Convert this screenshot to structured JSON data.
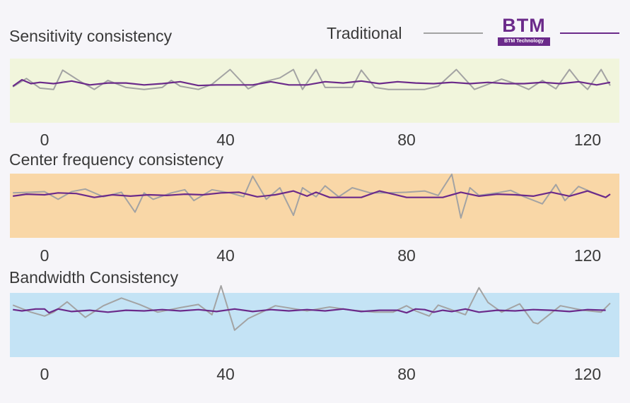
{
  "legend": {
    "traditional_label": "Traditional",
    "traditional_color": "#a3a3a3",
    "btm_color": "#6b2a8a",
    "btm_logo_text": "BTM",
    "btm_logo_subtext": "BTM Technology"
  },
  "chart_data": [
    {
      "type": "line",
      "title": "Sensitivity consistency",
      "band_color": "#f1f5dc",
      "xlim": [
        -8,
        128
      ],
      "ylim": [
        0,
        1
      ],
      "xticks": [
        0,
        40,
        80,
        120
      ],
      "series": [
        {
          "name": "Traditional",
          "x": [
            -7,
            -4,
            -1,
            2,
            4,
            8,
            11,
            14,
            18,
            22,
            26,
            28,
            30,
            34,
            37,
            41,
            45,
            48,
            52,
            55,
            57,
            60,
            62,
            65,
            68,
            70,
            73,
            76,
            80,
            84,
            87,
            91,
            95,
            98,
            101,
            104,
            107,
            110,
            113,
            116,
            118,
            120,
            123,
            125
          ],
          "y": [
            0.56,
            0.69,
            0.54,
            0.52,
            0.82,
            0.64,
            0.52,
            0.66,
            0.55,
            0.52,
            0.55,
            0.66,
            0.57,
            0.52,
            0.6,
            0.83,
            0.53,
            0.63,
            0.7,
            0.83,
            0.52,
            0.83,
            0.55,
            0.55,
            0.55,
            0.82,
            0.55,
            0.52,
            0.52,
            0.52,
            0.57,
            0.83,
            0.52,
            0.6,
            0.68,
            0.61,
            0.52,
            0.66,
            0.53,
            0.83,
            0.65,
            0.52,
            0.83,
            0.58
          ]
        },
        {
          "name": "BTM",
          "x": [
            -7,
            -5,
            -3,
            -1,
            2,
            6,
            10,
            14,
            18,
            22,
            26,
            30,
            34,
            38,
            42,
            46,
            50,
            54,
            58,
            62,
            66,
            70,
            74,
            78,
            82,
            86,
            90,
            94,
            98,
            102,
            106,
            110,
            114,
            118,
            122,
            125
          ],
          "y": [
            0.57,
            0.67,
            0.61,
            0.63,
            0.61,
            0.65,
            0.59,
            0.62,
            0.62,
            0.59,
            0.61,
            0.64,
            0.58,
            0.59,
            0.59,
            0.59,
            0.64,
            0.59,
            0.59,
            0.64,
            0.62,
            0.65,
            0.61,
            0.64,
            0.62,
            0.61,
            0.63,
            0.61,
            0.63,
            0.61,
            0.61,
            0.63,
            0.61,
            0.64,
            0.59,
            0.63
          ]
        }
      ]
    },
    {
      "type": "line",
      "title": "Center frequency consistency",
      "band_color": "#f9d7a7",
      "xlim": [
        -8,
        128
      ],
      "ylim": [
        0,
        1
      ],
      "xticks": [
        0,
        40,
        80,
        120
      ],
      "series": [
        {
          "name": "Traditional",
          "x": [
            -7,
            -3,
            0,
            3,
            6,
            9,
            13,
            17,
            20,
            22,
            24,
            28,
            31,
            33,
            37,
            41,
            44,
            46,
            49,
            52,
            55,
            57,
            60,
            62,
            65,
            68,
            72,
            76,
            80,
            84,
            87,
            90,
            92,
            94,
            96,
            100,
            103,
            106,
            110,
            113,
            115,
            118,
            121,
            124
          ],
          "y": [
            0.7,
            0.71,
            0.72,
            0.6,
            0.72,
            0.76,
            0.64,
            0.71,
            0.4,
            0.7,
            0.6,
            0.7,
            0.75,
            0.58,
            0.75,
            0.7,
            0.64,
            0.96,
            0.6,
            0.78,
            0.35,
            0.78,
            0.64,
            0.81,
            0.64,
            0.78,
            0.7,
            0.7,
            0.71,
            0.73,
            0.66,
            0.99,
            0.31,
            0.78,
            0.66,
            0.7,
            0.74,
            0.64,
            0.53,
            0.83,
            0.58,
            0.8,
            0.71,
            0.63
          ]
        },
        {
          "name": "BTM",
          "x": [
            -7,
            -4,
            0,
            3,
            7,
            11,
            15,
            19,
            23,
            27,
            31,
            35,
            39,
            43,
            47,
            51,
            55,
            58,
            60,
            63,
            66,
            70,
            74,
            77,
            80,
            84,
            88,
            92,
            96,
            100,
            104,
            108,
            112,
            116,
            120,
            124,
            125
          ],
          "y": [
            0.65,
            0.68,
            0.67,
            0.7,
            0.69,
            0.63,
            0.67,
            0.65,
            0.67,
            0.66,
            0.68,
            0.67,
            0.7,
            0.71,
            0.64,
            0.67,
            0.73,
            0.65,
            0.71,
            0.63,
            0.63,
            0.63,
            0.73,
            0.68,
            0.63,
            0.63,
            0.63,
            0.71,
            0.65,
            0.68,
            0.67,
            0.65,
            0.71,
            0.65,
            0.73,
            0.63,
            0.68
          ]
        }
      ]
    },
    {
      "type": "line",
      "title": "Bandwidth Consistency",
      "band_color": "#c4e3f5",
      "xlim": [
        -8,
        128
      ],
      "ylim": [
        0,
        1
      ],
      "xticks": [
        0,
        40,
        80,
        120
      ],
      "series": [
        {
          "name": "Traditional",
          "x": [
            -7,
            -3,
            0,
            2,
            5,
            9,
            13,
            17,
            21,
            25,
            30,
            34,
            37,
            39,
            42,
            45,
            51,
            58,
            63,
            68,
            73,
            77,
            80,
            82,
            85,
            87,
            93,
            96,
            98,
            101,
            105,
            108,
            109,
            114,
            119,
            123,
            125
          ],
          "y": [
            0.81,
            0.7,
            0.64,
            0.7,
            0.86,
            0.62,
            0.8,
            0.92,
            0.82,
            0.7,
            0.77,
            0.82,
            0.66,
            1.11,
            0.42,
            0.6,
            0.8,
            0.72,
            0.78,
            0.73,
            0.7,
            0.7,
            0.8,
            0.72,
            0.64,
            0.81,
            0.66,
            1.08,
            0.85,
            0.7,
            0.83,
            0.54,
            0.52,
            0.8,
            0.73,
            0.7,
            0.84
          ]
        },
        {
          "name": "BTM",
          "x": [
            -7,
            -5,
            -2,
            0,
            1,
            3,
            6,
            10,
            14,
            18,
            22,
            26,
            30,
            34,
            38,
            42,
            46,
            50,
            54,
            58,
            62,
            66,
            70,
            74,
            78,
            80,
            82,
            84,
            86,
            88,
            90,
            93,
            96,
            100,
            104,
            108,
            112,
            116,
            120,
            124
          ],
          "y": [
            0.74,
            0.72,
            0.75,
            0.75,
            0.69,
            0.75,
            0.71,
            0.73,
            0.7,
            0.73,
            0.72,
            0.74,
            0.72,
            0.74,
            0.71,
            0.75,
            0.71,
            0.74,
            0.72,
            0.74,
            0.72,
            0.75,
            0.71,
            0.73,
            0.73,
            0.69,
            0.75,
            0.74,
            0.7,
            0.73,
            0.71,
            0.75,
            0.7,
            0.73,
            0.72,
            0.74,
            0.73,
            0.71,
            0.74,
            0.73
          ]
        }
      ]
    }
  ]
}
